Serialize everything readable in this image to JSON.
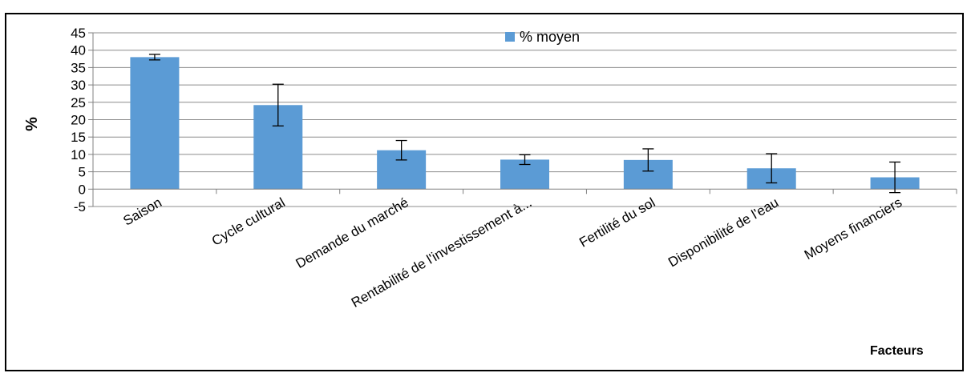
{
  "chart_data": {
    "type": "bar",
    "categories": [
      "Saison",
      "Cycle cultural",
      "Demande du marché",
      "Rentabilité de l'investissement à...",
      "Fertilité du sol",
      "Disponibilité de l'eau",
      "Moyens financiers"
    ],
    "series": [
      {
        "name": "% moyen",
        "values": [
          38.0,
          24.2,
          11.2,
          8.5,
          8.4,
          6.0,
          3.4
        ],
        "error": [
          0.8,
          6.0,
          2.8,
          1.4,
          3.2,
          4.2,
          4.4
        ]
      }
    ],
    "ylabel": "%",
    "xlabel": "Facteurs",
    "ylim": [
      -5,
      45
    ],
    "yticks": [
      45,
      40,
      35,
      30,
      25,
      20,
      15,
      10,
      5,
      0,
      -5
    ],
    "grid": true,
    "legend_position": "top",
    "colors": {
      "bar": "#5B9BD5",
      "grid": "#8C8C8C",
      "axis": "#808080",
      "error_bar": "#000000"
    }
  }
}
